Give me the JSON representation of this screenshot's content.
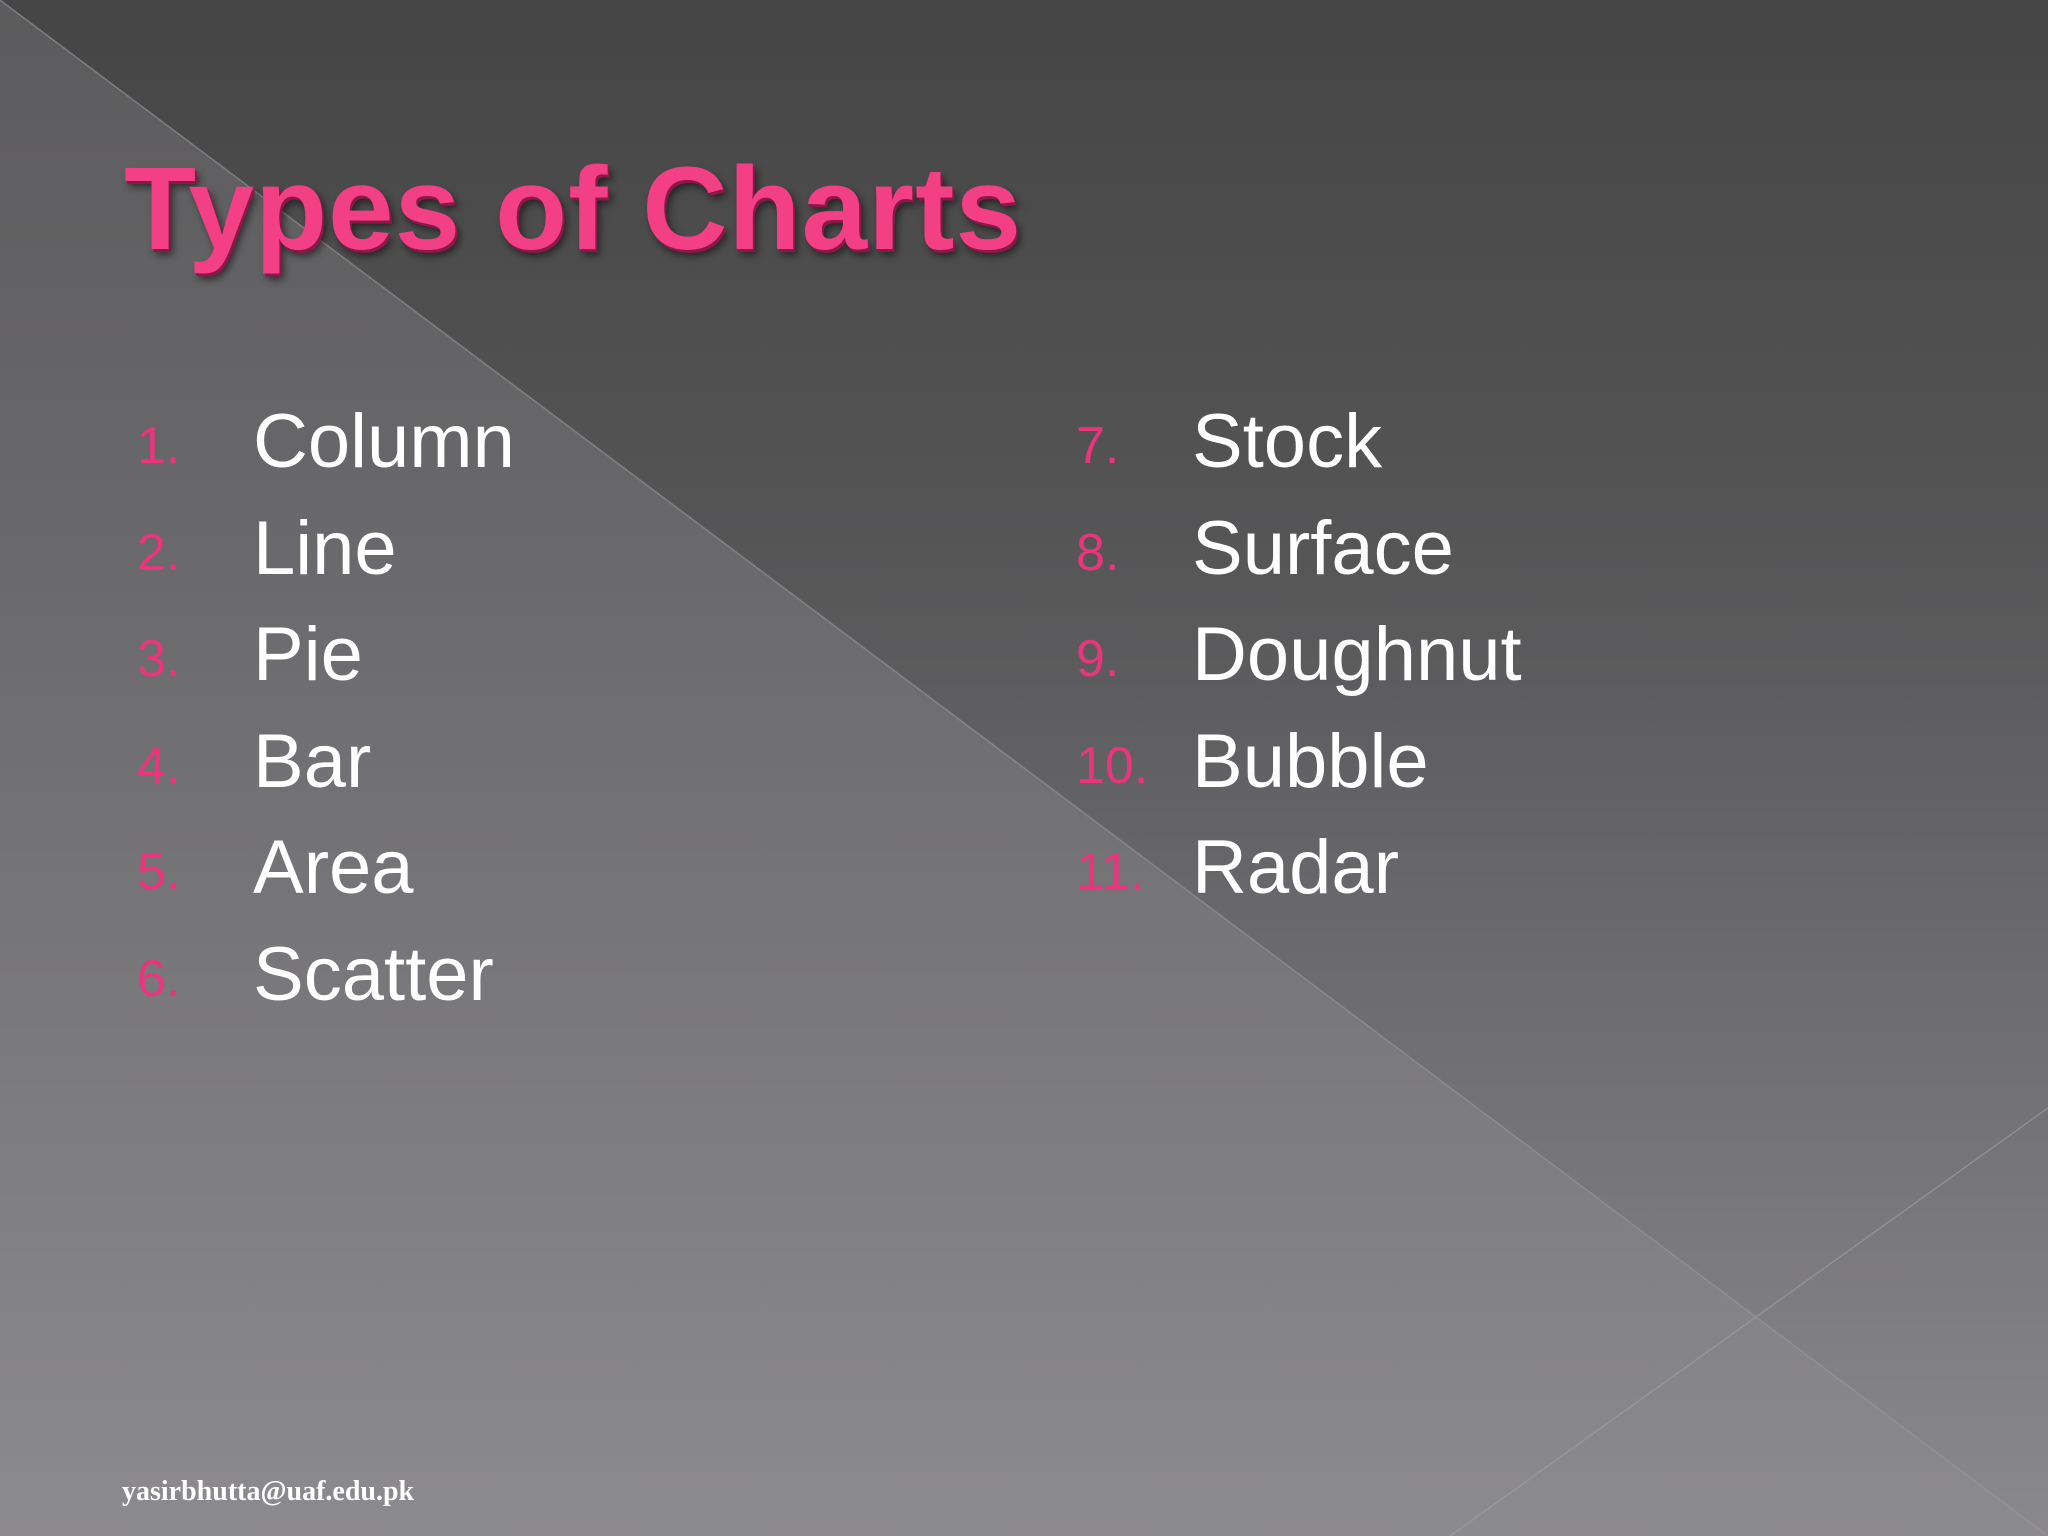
{
  "slide": {
    "title": "Types of Charts",
    "footer": "yasirbhutta@uaf.edu.pk"
  },
  "list_left": [
    {
      "number": "1.",
      "label": "Column"
    },
    {
      "number": "2.",
      "label": "Line"
    },
    {
      "number": "3.",
      "label": "Pie"
    },
    {
      "number": "4.",
      "label": "Bar"
    },
    {
      "number": "5.",
      "label": "Area"
    },
    {
      "number": "6.",
      "label": "Scatter"
    }
  ],
  "list_right": [
    {
      "number": "7.",
      "label": "Stock"
    },
    {
      "number": "8.",
      "label": "Surface"
    },
    {
      "number": "9.",
      "label": "Doughnut"
    },
    {
      "number": "10.",
      "label": "Bubble"
    },
    {
      "number": "11.",
      "label": "Radar"
    }
  ],
  "colors": {
    "title": "#f23f86",
    "number": "#e8357c",
    "item_text": "#ffffff"
  }
}
